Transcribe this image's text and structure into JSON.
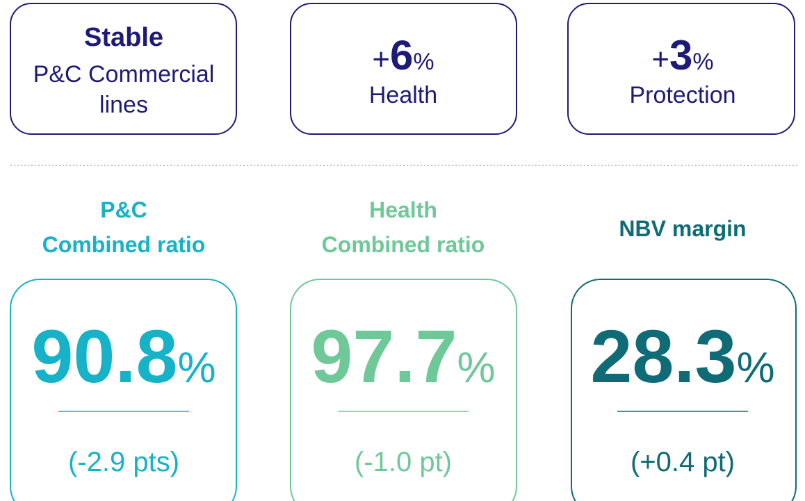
{
  "growth_cards": [
    {
      "headline": "Stable",
      "label_lines": [
        "P&C Commercial",
        "lines"
      ]
    },
    {
      "prefix": "+",
      "figure": "6",
      "unit": "%",
      "label_lines": [
        "Health"
      ]
    },
    {
      "prefix": "+",
      "figure": "3",
      "unit": "%",
      "label_lines": [
        "Protection"
      ]
    }
  ],
  "ratio_cards": [
    {
      "heading_lines": [
        "P&C",
        "Combined ratio"
      ],
      "value": "90.8",
      "unit": "%",
      "change": "(-2.9 pts)",
      "color": "#16b2c8"
    },
    {
      "heading_lines": [
        "Health",
        "Combined ratio"
      ],
      "value": "97.7",
      "unit": "%",
      "change": "(-1.0 pt)",
      "color": "#6ec897"
    },
    {
      "heading_lines": [
        "NBV margin"
      ],
      "value": "28.3",
      "unit": "%",
      "change": "(+0.4 pt)",
      "color": "#0f6b75"
    }
  ]
}
